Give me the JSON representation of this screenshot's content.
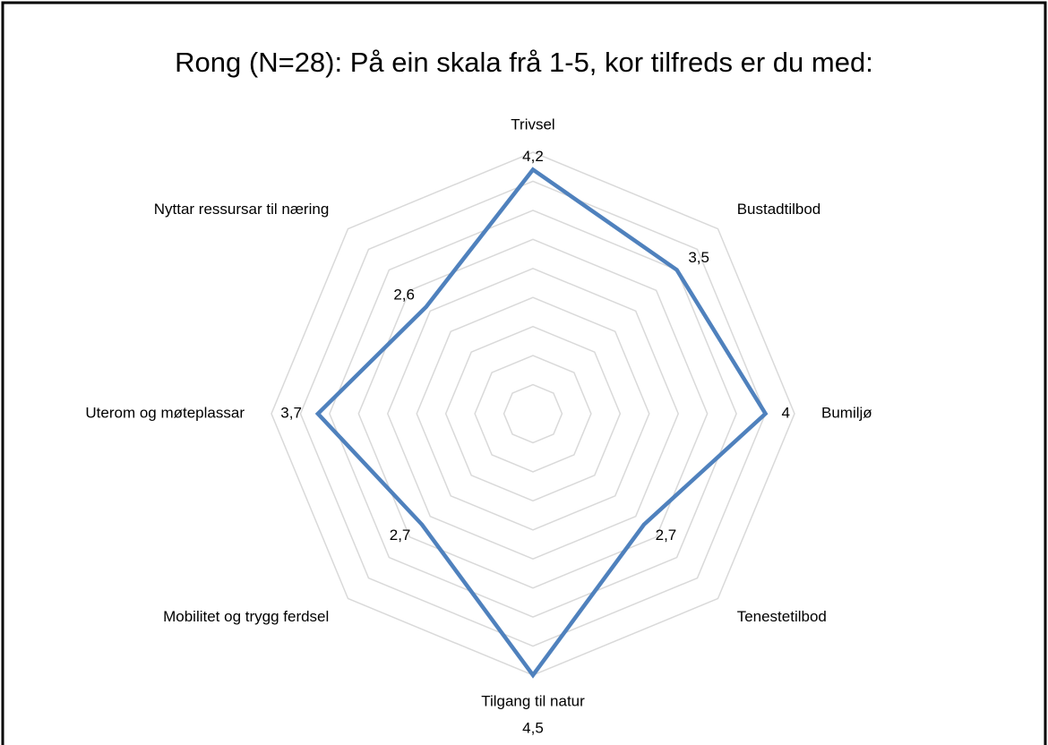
{
  "chart_data": {
    "type": "radar",
    "title": "Rong (N=28): På ein skala frå 1-5, kor tilfreds er du med:",
    "categories": [
      "Trivsel",
      "Bustadtilbod",
      "Bumiljø",
      "Tenestetilbod",
      "Tilgang til natur",
      "Mobilitet og trygg ferdsel",
      "Uterom og møteplassar",
      "Nyttar ressursar til næring"
    ],
    "values": [
      4.2,
      3.5,
      4,
      2.7,
      4.5,
      2.7,
      3.7,
      2.6
    ],
    "value_labels": [
      "4,2",
      "3,5",
      "4",
      "2,7",
      "4,5",
      "2,7",
      "3,7",
      "2,6"
    ],
    "color": "#4f81bd",
    "ylim": [
      0,
      4.5
    ],
    "yticks": [
      0,
      0.5,
      1,
      1.5,
      2,
      2.5,
      3,
      3.5,
      4,
      4.5
    ],
    "grid": true
  }
}
